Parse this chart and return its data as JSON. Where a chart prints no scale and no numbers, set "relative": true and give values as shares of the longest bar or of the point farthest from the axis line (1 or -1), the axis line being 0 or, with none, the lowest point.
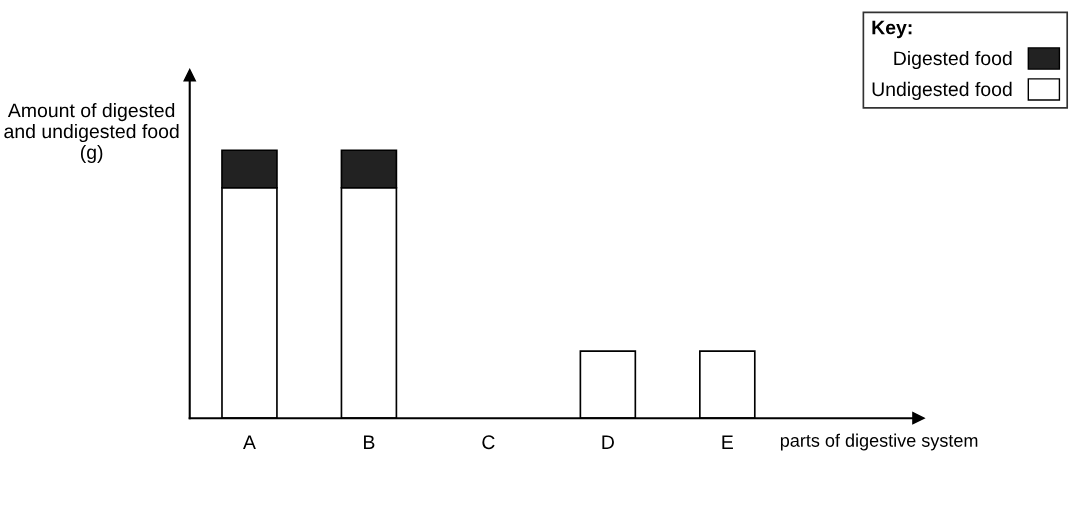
{
  "chart_data": {
    "type": "bar",
    "stacked": true,
    "relative": true,
    "ylabel": "Amount of digested and undigested food (g)",
    "xlabel": "parts of digestive system",
    "legend_title": "Key:",
    "legend": "top right",
    "tick_labels": "x",
    "grid": false,
    "categories": [
      "A",
      "B",
      "C",
      "D",
      "E"
    ],
    "series": [
      {
        "name": "Undigested food",
        "color": "#ffffff",
        "values": [
          0.86,
          0.86,
          0,
          0.25,
          0.25
        ]
      },
      {
        "name": "Digested food",
        "color": "#222222",
        "values": [
          0.14,
          0.14,
          0,
          0,
          0
        ]
      }
    ]
  }
}
